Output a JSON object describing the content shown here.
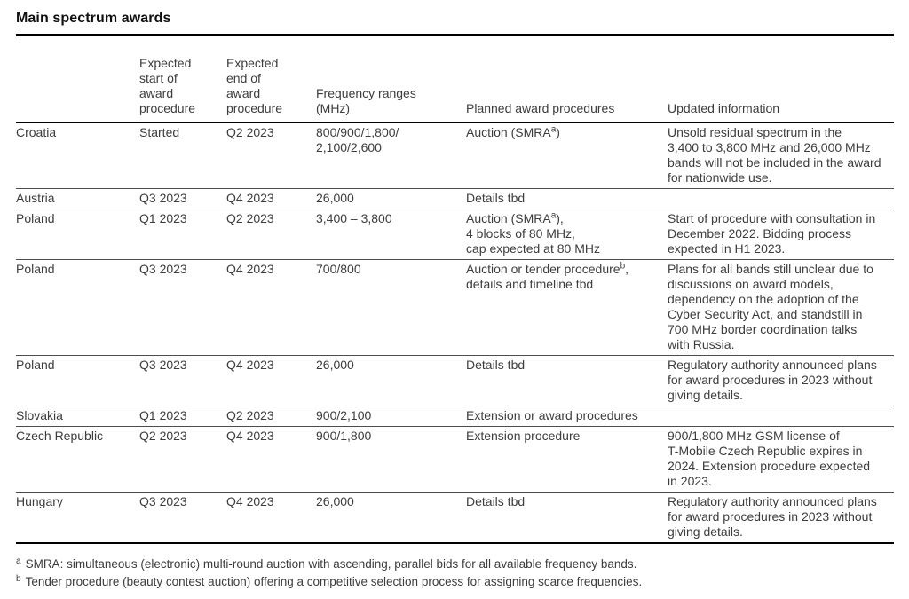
{
  "title": "Main spectrum awards",
  "table": {
    "columns": [
      "",
      "Expected\nstart of\naward\nprocedure",
      "Expected\nend of\naward\nprocedure",
      "Frequency ranges\n(MHz)",
      "Planned award procedures",
      "Updated information"
    ],
    "rows": [
      {
        "country": "Croatia",
        "start": "Started",
        "end": "Q2 2023",
        "frequency": "800/900/1,800/\n2,100/2,600",
        "procedure": "Auction (SMRA^a^)",
        "updated": "Unsold residual spectrum in the\n3,400 to 3,800 MHz and 26,000 MHz\nbands will not be included in the award\nfor nationwide use."
      },
      {
        "country": "Austria",
        "start": "Q3 2023",
        "end": "Q4 2023",
        "frequency": "26,000",
        "procedure": "Details tbd",
        "updated": ""
      },
      {
        "country": "Poland",
        "start": "Q1 2023",
        "end": "Q2 2023",
        "frequency": "3,400 – 3,800",
        "procedure": "Auction (SMRA^a^),\n4 blocks of 80 MHz,\ncap expected at 80 MHz",
        "updated": "Start of procedure with consultation in\nDecember 2022. Bidding process\nexpected in H1 2023."
      },
      {
        "country": "Poland",
        "start": "Q3 2023",
        "end": "Q4 2023",
        "frequency": "700/800",
        "procedure": "Auction or tender procedure^b^,\ndetails and timeline tbd",
        "updated": "Plans for all bands still unclear due to\ndiscussions on award models,\ndependency on the adoption of the\nCyber Security Act, and standstill in\n700 MHz border coordination talks\nwith Russia."
      },
      {
        "country": "Poland",
        "start": "Q3 2023",
        "end": "Q4 2023",
        "frequency": "26,000",
        "procedure": "Details tbd",
        "updated": "Regulatory authority announced plans\nfor award procedures in 2023 without\ngiving details."
      },
      {
        "country": "Slovakia",
        "start": "Q1 2023",
        "end": "Q2 2023",
        "frequency": "900/2,100",
        "procedure": "Extension or award procedures",
        "updated": ""
      },
      {
        "country": "Czech Republic",
        "start": "Q2 2023",
        "end": "Q4 2023",
        "frequency": "900/1,800",
        "procedure": "Extension procedure",
        "updated": "900/1,800 MHz GSM license of\nT-Mobile Czech Republic expires in\n2024. Extension procedure expected\nin 2023."
      },
      {
        "country": "Hungary",
        "start": "Q3 2023",
        "end": "Q4 2023",
        "frequency": "26,000",
        "procedure": "Details tbd",
        "updated": "Regulatory authority announced plans\nfor award procedures in 2023 without\ngiving details."
      }
    ]
  },
  "footnotes": [
    {
      "marker": "a",
      "text": "SMRA: simultaneous (electronic) multi-round auction with ascending, parallel bids for all available frequency bands."
    },
    {
      "marker": "b",
      "text": "Tender procedure (beauty contest auction) offering a competitive selection process for assigning scarce frequencies."
    }
  ]
}
